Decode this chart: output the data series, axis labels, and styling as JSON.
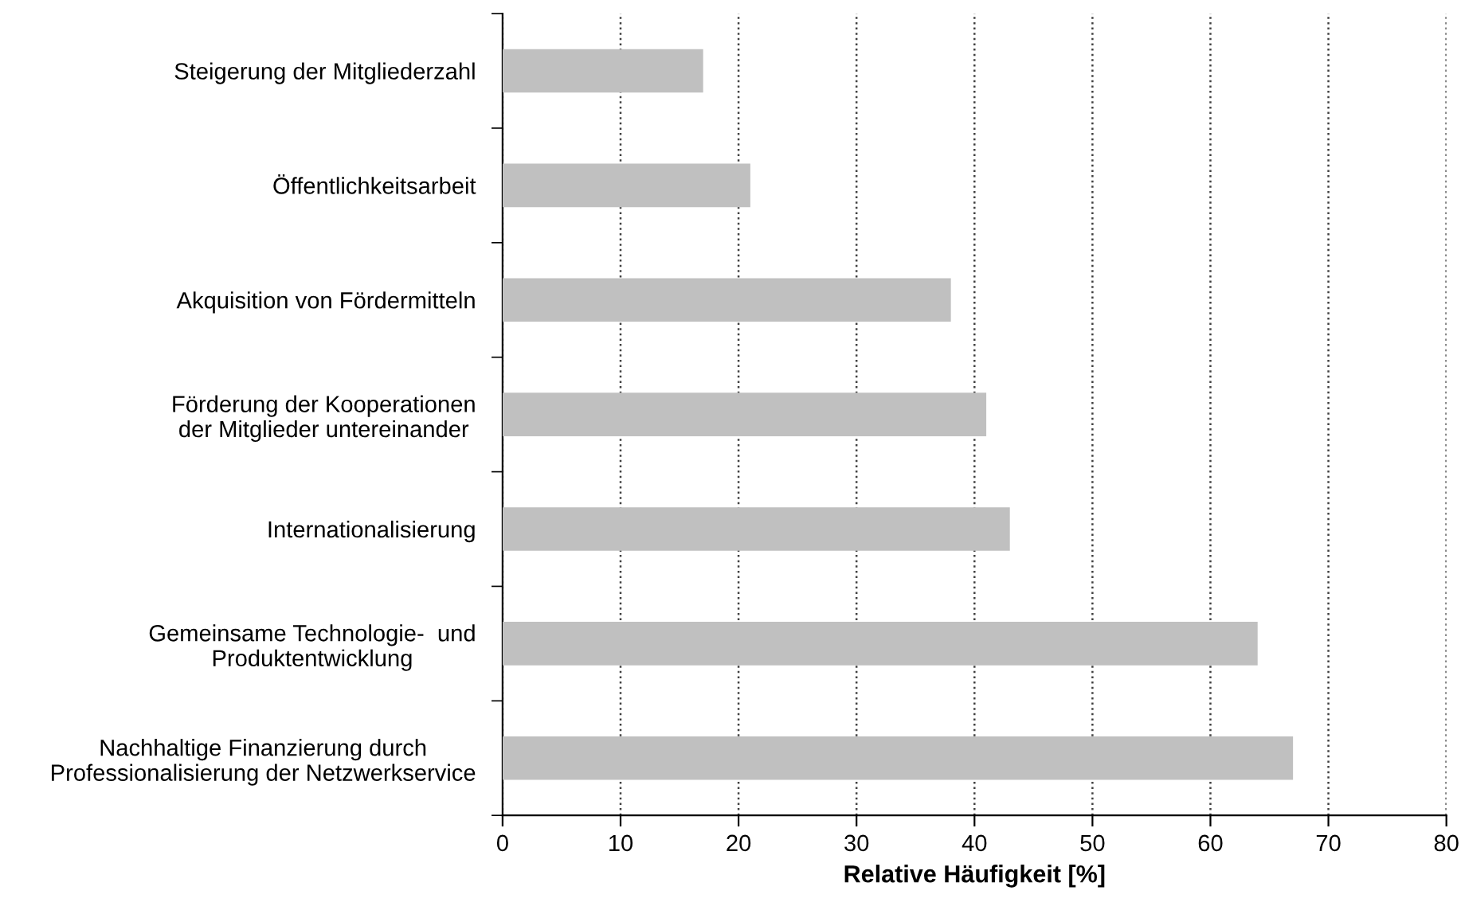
{
  "chart_data": {
    "type": "bar",
    "orientation": "horizontal",
    "xlabel": "Relative Häufigkeit [%]",
    "categories": [
      "Steigerung der Mitgliederzahl",
      "Öffentlichkeitsarbeit",
      "Akquisition von Fördermitteln",
      "Förderung der Kooperationen\nder Mitglieder untereinander",
      "Internationalisierung",
      "Gemeinsame Technologie-  und\nProduktentwicklung",
      "Nachhaltige Finanzierung durch\nProfessionalisierung der Netzwerkservice"
    ],
    "values": [
      17,
      21,
      38,
      41,
      43,
      64,
      67
    ],
    "color": "#c0c0c0",
    "xlim": [
      0,
      80
    ],
    "xticks": [
      0,
      10,
      20,
      30,
      40,
      50,
      60,
      70,
      80
    ],
    "grid": "x",
    "legend": false
  }
}
